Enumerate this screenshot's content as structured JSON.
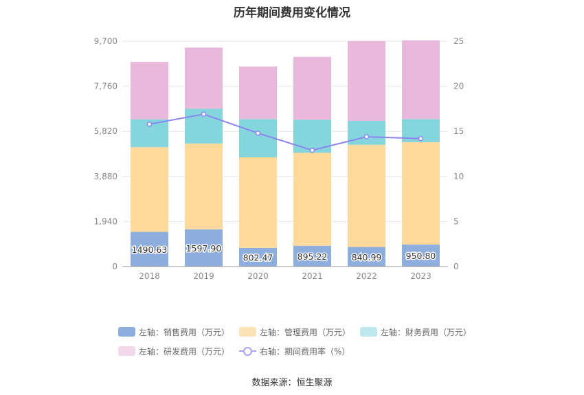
{
  "chart_data": {
    "type": "bar",
    "title": "历年期间费用变化情况",
    "categories": [
      "2018",
      "2019",
      "2020",
      "2021",
      "2022",
      "2023"
    ],
    "left_axis": {
      "ticks": [
        "0",
        "1,940",
        "3,880",
        "5,820",
        "7,760",
        "9,700"
      ],
      "ylim": [
        0,
        9700
      ]
    },
    "right_axis": {
      "ticks": [
        "0",
        "5",
        "10",
        "15",
        "20",
        "25"
      ],
      "ylim": [
        0,
        25
      ]
    },
    "series": [
      {
        "name": "左轴：销售费用（万元）",
        "type": "bar",
        "stack": true,
        "color": "#8eaedd",
        "values": [
          1490.63,
          1597.9,
          802.47,
          895.22,
          840.99,
          950.8
        ],
        "labels": [
          "1490.63",
          "1597.90",
          "802.47",
          "895.22",
          "840.99",
          "950.80"
        ]
      },
      {
        "name": "左轴：管理费用（万元）",
        "type": "bar",
        "stack": true,
        "color": "#fdd99b",
        "values": [
          3650,
          3700,
          3900,
          4000,
          4400,
          4400
        ]
      },
      {
        "name": "左轴：财务费用（万元）",
        "type": "bar",
        "stack": true,
        "color": "#85d5dc",
        "values": [
          1200,
          1500,
          1650,
          1430,
          1030,
          1000
        ]
      },
      {
        "name": "左轴：研发费用（万元）",
        "type": "bar",
        "stack": true,
        "color": "#e8b9da",
        "values": [
          2470,
          2630,
          2260,
          2700,
          3440,
          3390
        ]
      },
      {
        "name": "右轴：期间费用率（%）",
        "type": "line",
        "axis": "right",
        "color": "#8b85f0",
        "values": [
          15.8,
          16.9,
          14.8,
          12.9,
          14.4,
          14.2
        ]
      }
    ],
    "legend_placement": "bottom",
    "grid": true
  },
  "legend": {
    "row1": [
      "左轴：销售费用（万元）",
      "左轴：管理费用（万元）",
      "左轴：财务费用（万元）"
    ],
    "row2": [
      "左轴：研发费用（万元）",
      "右轴：期间费用率（%）"
    ]
  },
  "source": "数据来源：恒生聚源"
}
